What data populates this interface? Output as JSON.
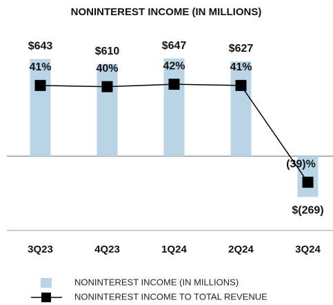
{
  "chart_data": {
    "type": "bar",
    "title": "NONINTEREST INCOME (IN MILLIONS)",
    "categories": [
      "3Q23",
      "4Q23",
      "1Q24",
      "2Q24",
      "3Q24"
    ],
    "series": [
      {
        "name": "NONINTEREST INCOME (IN MILLIONS)",
        "type": "bar",
        "color": "#b9d5e5",
        "values": [
          643,
          610,
          647,
          627,
          -269
        ],
        "value_labels": [
          "$643",
          "$610",
          "$647",
          "$627",
          "$(269)"
        ]
      },
      {
        "name": "NONINTEREST INCOME TO TOTAL REVENUE",
        "type": "line",
        "axis": "y2",
        "color": "#000000",
        "values": [
          41,
          40,
          42,
          41,
          -39
        ],
        "value_labels": [
          "41%",
          "40%",
          "42%",
          "41%",
          "(39)%"
        ]
      }
    ],
    "ylim": [
      -500,
      700
    ],
    "y2lim": [
      -80,
      70
    ]
  }
}
